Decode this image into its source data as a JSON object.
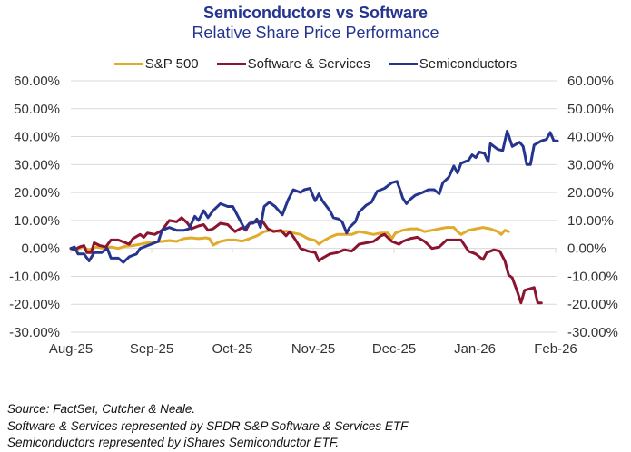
{
  "chart_data": {
    "type": "line",
    "title": "Semiconductors vs Software",
    "subtitle": "Relative Share Price Performance",
    "xlabel": "",
    "ylabel": "",
    "x_unit": "months since Aug-25",
    "x_ticks": [
      "Aug-25",
      "Sep-25",
      "Oct-25",
      "Nov-25",
      "Dec-25",
      "Jan-26",
      "Feb-26"
    ],
    "xlim": [
      0,
      6
    ],
    "ylim": [
      -30,
      60
    ],
    "y_ticks": [
      "60.00%",
      "50.00%",
      "40.00%",
      "30.00%",
      "20.00%",
      "10.00%",
      "0.00%",
      "-10.00%",
      "-20.00%",
      "-30.00%"
    ],
    "y_tick_values": [
      60,
      50,
      40,
      30,
      20,
      10,
      0,
      -10,
      -20,
      -30
    ],
    "secondary_y_axis": true,
    "grid": true,
    "legend": "top-center",
    "series": [
      {
        "name": "S&P 500",
        "color": "#e0aa2a",
        "points": [
          [
            0.0,
            0.0
          ],
          [
            0.08,
            -0.5
          ],
          [
            0.16,
            0.5
          ],
          [
            0.25,
            -0.5
          ],
          [
            0.35,
            0.5
          ],
          [
            0.45,
            0.0
          ],
          [
            0.55,
            0.5
          ],
          [
            0.65,
            0.0
          ],
          [
            0.75,
            0.8
          ],
          [
            0.85,
            1.0
          ],
          [
            0.95,
            1.5
          ],
          [
            1.05,
            2.0
          ],
          [
            1.15,
            2.3
          ],
          [
            1.25,
            2.5
          ],
          [
            1.35,
            2.8
          ],
          [
            1.45,
            2.5
          ],
          [
            1.55,
            3.5
          ],
          [
            1.65,
            3.8
          ],
          [
            1.75,
            3.5
          ],
          [
            1.85,
            3.8
          ],
          [
            1.9,
            3.5
          ],
          [
            1.95,
            1.2
          ],
          [
            2.05,
            2.5
          ],
          [
            2.15,
            3.0
          ],
          [
            2.25,
            3.0
          ],
          [
            2.35,
            2.6
          ],
          [
            2.45,
            3.5
          ],
          [
            2.55,
            4.5
          ],
          [
            2.65,
            6.0
          ],
          [
            2.75,
            6.5
          ],
          [
            2.85,
            6.0
          ],
          [
            2.95,
            6.2
          ],
          [
            3.05,
            5.5
          ],
          [
            3.15,
            5.0
          ],
          [
            3.25,
            3.5
          ],
          [
            3.35,
            2.8
          ],
          [
            3.4,
            1.5
          ],
          [
            3.45,
            2.5
          ],
          [
            3.55,
            4.0
          ],
          [
            3.65,
            5.0
          ],
          [
            3.75,
            5.0
          ],
          [
            3.85,
            5.0
          ],
          [
            3.95,
            6.0
          ],
          [
            4.05,
            5.5
          ],
          [
            4.15,
            5.0
          ],
          [
            4.25,
            5.5
          ],
          [
            4.35,
            5.5
          ],
          [
            4.4,
            3.5
          ],
          [
            4.45,
            5.5
          ],
          [
            4.55,
            6.5
          ],
          [
            4.65,
            7.0
          ],
          [
            4.75,
            7.0
          ],
          [
            4.85,
            6.0
          ],
          [
            4.95,
            6.5
          ],
          [
            5.05,
            7.0
          ],
          [
            5.15,
            7.5
          ],
          [
            5.25,
            7.5
          ],
          [
            5.3,
            6.0
          ],
          [
            5.35,
            5.0
          ],
          [
            5.45,
            6.5
          ],
          [
            5.55,
            7.0
          ],
          [
            5.65,
            7.5
          ],
          [
            5.75,
            7.0
          ],
          [
            5.85,
            6.0
          ],
          [
            5.9,
            5.0
          ],
          [
            5.95,
            6.5
          ],
          [
            6.0,
            6.0
          ]
        ]
      },
      {
        "name": "Software & Services",
        "color": "#8b1530",
        "points": [
          [
            0.0,
            0.0
          ],
          [
            0.05,
            -0.5
          ],
          [
            0.12,
            0.5
          ],
          [
            0.18,
            1.0
          ],
          [
            0.22,
            -1.5
          ],
          [
            0.28,
            -1.5
          ],
          [
            0.32,
            2.0
          ],
          [
            0.4,
            1.0
          ],
          [
            0.48,
            0.5
          ],
          [
            0.55,
            3.0
          ],
          [
            0.65,
            3.0
          ],
          [
            0.75,
            2.0
          ],
          [
            0.8,
            1.5
          ],
          [
            0.85,
            3.5
          ],
          [
            0.95,
            5.0
          ],
          [
            1.0,
            4.0
          ],
          [
            1.05,
            5.5
          ],
          [
            1.15,
            5.0
          ],
          [
            1.25,
            6.5
          ],
          [
            1.35,
            10.0
          ],
          [
            1.45,
            9.5
          ],
          [
            1.52,
            11.0
          ],
          [
            1.6,
            9.0
          ],
          [
            1.65,
            7.0
          ],
          [
            1.75,
            8.0
          ],
          [
            1.82,
            8.5
          ],
          [
            1.88,
            6.5
          ],
          [
            1.95,
            7.0
          ],
          [
            2.05,
            9.0
          ],
          [
            2.15,
            8.5
          ],
          [
            2.25,
            6.0
          ],
          [
            2.35,
            7.5
          ],
          [
            2.4,
            6.5
          ],
          [
            2.45,
            9.0
          ],
          [
            2.55,
            9.5
          ],
          [
            2.62,
            10.0
          ],
          [
            2.7,
            7.0
          ],
          [
            2.78,
            6.0
          ],
          [
            2.88,
            6.5
          ],
          [
            2.95,
            4.5
          ],
          [
            3.0,
            6.0
          ],
          [
            3.08,
            3.0
          ],
          [
            3.15,
            0.0
          ],
          [
            3.25,
            -1.0
          ],
          [
            3.35,
            -1.5
          ],
          [
            3.4,
            -4.5
          ],
          [
            3.45,
            -3.5
          ],
          [
            3.55,
            -2.0
          ],
          [
            3.65,
            -1.5
          ],
          [
            3.75,
            -0.5
          ],
          [
            3.85,
            -1.0
          ],
          [
            3.95,
            1.5
          ],
          [
            4.05,
            2.0
          ],
          [
            4.15,
            2.5
          ],
          [
            4.25,
            4.5
          ],
          [
            4.3,
            5.0
          ],
          [
            4.4,
            2.5
          ],
          [
            4.5,
            1.5
          ],
          [
            4.55,
            2.5
          ],
          [
            4.65,
            3.5
          ],
          [
            4.75,
            4.0
          ],
          [
            4.85,
            2.5
          ],
          [
            4.95,
            0.0
          ],
          [
            5.05,
            0.5
          ],
          [
            5.15,
            3.0
          ],
          [
            5.25,
            3.0
          ],
          [
            5.35,
            3.0
          ],
          [
            5.45,
            -1.0
          ],
          [
            5.55,
            -2.0
          ],
          [
            5.65,
            -4.0
          ],
          [
            5.7,
            -1.5
          ],
          [
            5.8,
            -0.5
          ],
          [
            5.88,
            -1.0
          ],
          [
            5.95,
            -4.5
          ],
          [
            6.0,
            -9.5
          ],
          [
            6.05,
            -10.5
          ],
          [
            6.12,
            -15.5
          ],
          [
            6.17,
            -19.5
          ],
          [
            6.22,
            -15.0
          ],
          [
            6.35,
            -14.0
          ],
          [
            6.4,
            -19.5
          ],
          [
            6.45,
            -19.5
          ]
        ]
      },
      {
        "name": "Semiconductors",
        "color": "#25358f",
        "points": [
          [
            0.0,
            0.0
          ],
          [
            0.05,
            0.5
          ],
          [
            0.1,
            -2.0
          ],
          [
            0.18,
            -2.0
          ],
          [
            0.25,
            -4.5
          ],
          [
            0.32,
            -1.5
          ],
          [
            0.42,
            -1.5
          ],
          [
            0.5,
            0.0
          ],
          [
            0.55,
            -3.5
          ],
          [
            0.65,
            -3.5
          ],
          [
            0.72,
            -5.0
          ],
          [
            0.8,
            -3.0
          ],
          [
            0.9,
            -2.0
          ],
          [
            0.95,
            0.0
          ],
          [
            1.05,
            1.0
          ],
          [
            1.15,
            2.0
          ],
          [
            1.2,
            2.5
          ],
          [
            1.25,
            6.5
          ],
          [
            1.35,
            7.5
          ],
          [
            1.45,
            6.5
          ],
          [
            1.55,
            6.5
          ],
          [
            1.62,
            7.0
          ],
          [
            1.7,
            11.5
          ],
          [
            1.75,
            10.0
          ],
          [
            1.82,
            13.5
          ],
          [
            1.88,
            11.0
          ],
          [
            1.95,
            13.5
          ],
          [
            2.05,
            16.0
          ],
          [
            2.15,
            15.0
          ],
          [
            2.22,
            15.0
          ],
          [
            2.3,
            11.0
          ],
          [
            2.38,
            7.0
          ],
          [
            2.45,
            9.0
          ],
          [
            2.5,
            9.0
          ],
          [
            2.55,
            10.5
          ],
          [
            2.6,
            7.5
          ],
          [
            2.65,
            15.0
          ],
          [
            2.72,
            16.5
          ],
          [
            2.8,
            15.0
          ],
          [
            2.85,
            13.5
          ],
          [
            2.9,
            12.0
          ],
          [
            2.98,
            17.5
          ],
          [
            3.05,
            21.0
          ],
          [
            3.15,
            20.0
          ],
          [
            3.2,
            21.0
          ],
          [
            3.28,
            21.5
          ],
          [
            3.3,
            20.0
          ],
          [
            3.35,
            17.0
          ],
          [
            3.4,
            19.5
          ],
          [
            3.45,
            17.0
          ],
          [
            3.55,
            13.5
          ],
          [
            3.6,
            11.0
          ],
          [
            3.67,
            10.5
          ],
          [
            3.72,
            9.5
          ],
          [
            3.78,
            5.5
          ],
          [
            3.82,
            7.5
          ],
          [
            3.9,
            9.5
          ],
          [
            3.95,
            13.0
          ],
          [
            4.05,
            15.5
          ],
          [
            4.12,
            16.5
          ],
          [
            4.2,
            20.5
          ],
          [
            4.3,
            21.5
          ],
          [
            4.4,
            23.5
          ],
          [
            4.47,
            24.0
          ],
          [
            4.52,
            20.5
          ],
          [
            4.55,
            18.0
          ],
          [
            4.6,
            16.0
          ],
          [
            4.65,
            17.5
          ],
          [
            4.72,
            19.0
          ],
          [
            4.82,
            20.0
          ],
          [
            4.9,
            21.0
          ],
          [
            4.98,
            21.0
          ],
          [
            5.05,
            19.5
          ],
          [
            5.1,
            23.5
          ],
          [
            5.18,
            25.5
          ],
          [
            5.25,
            29.5
          ],
          [
            5.3,
            27.0
          ],
          [
            5.35,
            30.5
          ],
          [
            5.45,
            31.5
          ],
          [
            5.5,
            33.5
          ],
          [
            5.55,
            32.5
          ],
          [
            5.6,
            34.5
          ],
          [
            5.67,
            34.0
          ],
          [
            5.72,
            31.0
          ],
          [
            5.75,
            37.5
          ],
          [
            5.85,
            35.5
          ],
          [
            5.92,
            35.0
          ],
          [
            5.98,
            42.0
          ],
          [
            6.05,
            36.5
          ],
          [
            6.15,
            38.0
          ],
          [
            6.2,
            36.5
          ],
          [
            6.25,
            30.0
          ],
          [
            6.3,
            30.0
          ],
          [
            6.35,
            37.0
          ],
          [
            6.45,
            38.5
          ],
          [
            6.52,
            39.0
          ],
          [
            6.57,
            41.5
          ],
          [
            6.62,
            38.5
          ],
          [
            6.67,
            38.5
          ]
        ]
      }
    ]
  },
  "footer": {
    "source": "Source: FactSet, Cutcher & Neale.",
    "note_software": "Software & Services represented by SPDR S&P Software & Services ETF",
    "note_semis": "Semiconductors represented by iShares Semiconductor ETF."
  }
}
